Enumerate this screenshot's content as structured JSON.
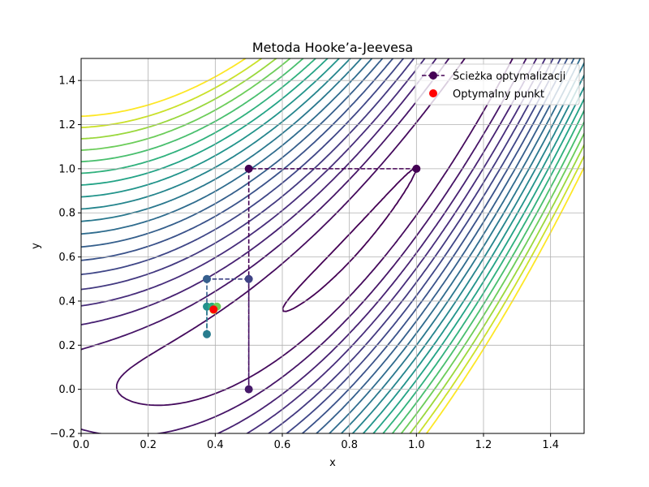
{
  "chart_data": {
    "type": "line",
    "title": "Metoda Hooke’a-Jeevesa",
    "xlabel": "x",
    "ylabel": "y",
    "xlim": [
      0.0,
      1.5
    ],
    "ylim": [
      -0.2,
      1.5
    ],
    "grid": true,
    "legend_position": "top-right",
    "x_ticks": [
      "0.0",
      "0.2",
      "0.4",
      "0.6",
      "0.8",
      "1.0",
      "1.2",
      "1.4"
    ],
    "y_ticks": [
      "−0.2",
      "0.0",
      "0.2",
      "0.4",
      "0.6",
      "0.8",
      "1.0",
      "1.2",
      "1.4"
    ],
    "background": "contour",
    "colormap": "viridis",
    "series": [
      {
        "name": "Ścieżka optymalizacji",
        "style": "dashed-line-with-markers",
        "points": [
          {
            "x": 1.0,
            "y": 1.0,
            "c": 0.0
          },
          {
            "x": 0.5,
            "y": 1.0,
            "c": 0.0
          },
          {
            "x": 0.5,
            "y": 0.0,
            "c": 0.07
          },
          {
            "x": 0.5,
            "y": 0.5,
            "c": 0.2
          },
          {
            "x": 0.375,
            "y": 0.5,
            "c": 0.3
          },
          {
            "x": 0.375,
            "y": 0.25,
            "c": 0.42
          },
          {
            "x": 0.375,
            "y": 0.375,
            "c": 0.5
          },
          {
            "x": 0.39,
            "y": 0.375,
            "c": 0.62
          },
          {
            "x": 0.405,
            "y": 0.375,
            "c": 0.78
          },
          {
            "x": 0.395,
            "y": 0.36,
            "c": 0.9
          }
        ]
      },
      {
        "name": "Optymalny punkt",
        "style": "marker",
        "color": "#ff0000",
        "points": [
          {
            "x": 0.395,
            "y": 0.362
          }
        ]
      }
    ]
  }
}
